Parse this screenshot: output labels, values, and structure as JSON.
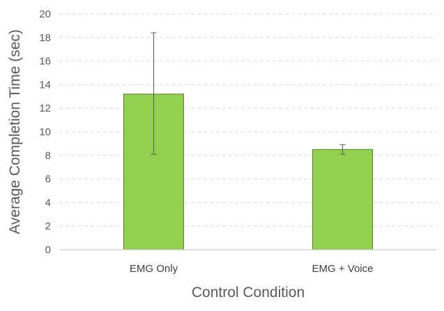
{
  "chart_data": {
    "type": "bar",
    "categories": [
      "EMG Only",
      "EMG + Voice"
    ],
    "values": [
      13.2,
      8.5
    ],
    "error_bars": [
      {
        "low": 8.1,
        "high": 18.4
      },
      {
        "low": 8.1,
        "high": 8.9
      }
    ],
    "xlabel": "Control Condition",
    "ylabel": "Average Completion Time (sec)",
    "ylim": [
      0,
      20
    ],
    "yticks": [
      0,
      2,
      4,
      6,
      8,
      10,
      12,
      14,
      16,
      18,
      20
    ],
    "grid": "horizontal dashed",
    "legend": "none",
    "colors": {
      "bar_fill": "#92d050",
      "bar_edge": "#5a7d2e",
      "gridline": "#d9d9d9",
      "axis_line": "#bfbfbf",
      "error_bar": "#595959"
    }
  }
}
